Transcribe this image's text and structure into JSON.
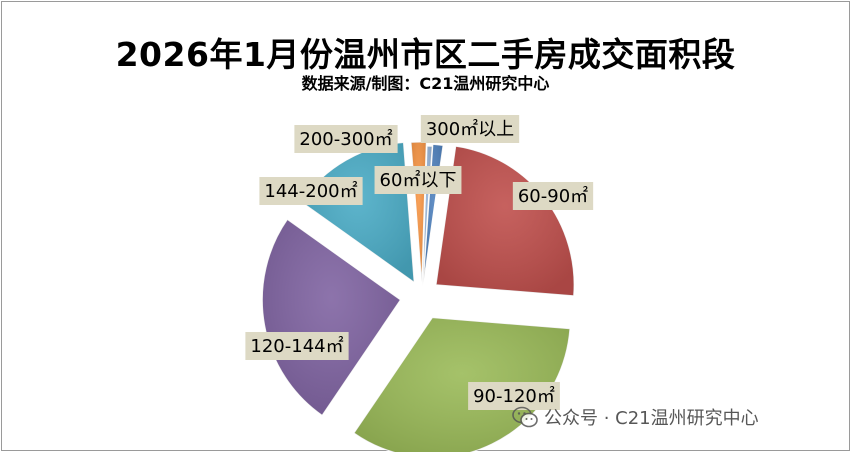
{
  "chart_data": {
    "type": "pie",
    "title": "2026年1月份温州市区二手房成交面积段",
    "subtitle": "数据来源/制图：C21温州研究中心",
    "exploded": true,
    "slices": [
      {
        "label": "60㎡以下",
        "value": 1.0,
        "color": "#4f81bd"
      },
      {
        "label": "60-90㎡",
        "value": 20.5,
        "color": "#c0504d"
      },
      {
        "label": "90-120㎡",
        "value": 28.5,
        "color": "#9bbb59"
      },
      {
        "label": "120-144㎡",
        "value": 21.5,
        "color": "#8064a2"
      },
      {
        "label": "144-200㎡",
        "value": 12.0,
        "color": "#4bacc6"
      },
      {
        "label": "200-300㎡",
        "value": 1.5,
        "color": "#f79646"
      },
      {
        "label": "300㎡以上",
        "value": 0.5,
        "color": "#95b3d7"
      }
    ]
  },
  "watermark": {
    "text": "公众号 · C21温州研究中心",
    "icon": "wechat-icon"
  }
}
